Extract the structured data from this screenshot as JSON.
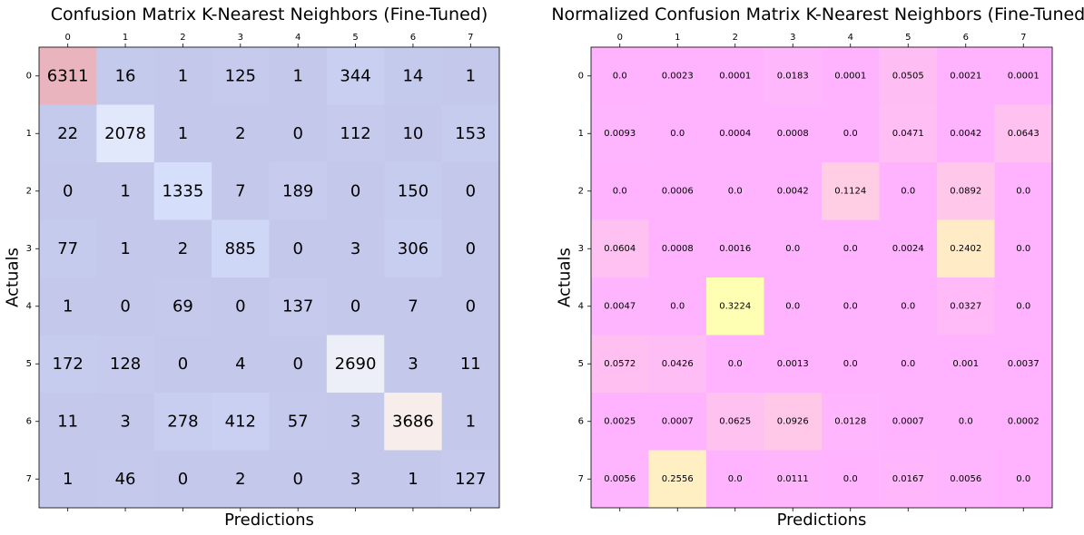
{
  "chart_data": [
    {
      "type": "heatmap",
      "title": "Confusion Matrix K-Nearest Neighbors (Fine-Tuned)",
      "xlabel": "Predictions",
      "ylabel": "Actuals",
      "x_ticks": [
        "0",
        "1",
        "2",
        "3",
        "4",
        "5",
        "6",
        "7"
      ],
      "y_ticks": [
        "0",
        "1",
        "2",
        "3",
        "4",
        "5",
        "6",
        "7"
      ],
      "colormap": "coolwarm",
      "alpha": 0.3,
      "values": [
        [
          6311,
          16,
          1,
          125,
          1,
          344,
          14,
          1
        ],
        [
          22,
          2078,
          1,
          2,
          0,
          112,
          10,
          153
        ],
        [
          0,
          1,
          1335,
          7,
          189,
          0,
          150,
          0
        ],
        [
          77,
          1,
          2,
          885,
          0,
          3,
          306,
          0
        ],
        [
          1,
          0,
          69,
          0,
          137,
          0,
          7,
          0
        ],
        [
          172,
          128,
          0,
          4,
          0,
          2690,
          3,
          11
        ],
        [
          11,
          3,
          278,
          412,
          57,
          3,
          3686,
          1
        ],
        [
          1,
          46,
          0,
          2,
          0,
          3,
          1,
          127
        ]
      ]
    },
    {
      "type": "heatmap",
      "title": "Normalized Confusion Matrix K-Nearest Neighbors (Fine-Tuned)",
      "xlabel": "Predictions",
      "ylabel": "Actuals",
      "x_ticks": [
        "0",
        "1",
        "2",
        "3",
        "4",
        "5",
        "6",
        "7"
      ],
      "y_ticks": [
        "0",
        "1",
        "2",
        "3",
        "4",
        "5",
        "6",
        "7"
      ],
      "colormap": "spring",
      "alpha": 0.3,
      "values": [
        [
          "0.0",
          "0.0023",
          "0.0001",
          "0.0183",
          "0.0001",
          "0.0505",
          "0.0021",
          "0.0001"
        ],
        [
          "0.0093",
          "0.0",
          "0.0004",
          "0.0008",
          "0.0",
          "0.0471",
          "0.0042",
          "0.0643"
        ],
        [
          "0.0",
          "0.0006",
          "0.0",
          "0.0042",
          "0.1124",
          "0.0",
          "0.0892",
          "0.0"
        ],
        [
          "0.0604",
          "0.0008",
          "0.0016",
          "0.0",
          "0.0",
          "0.0024",
          "0.2402",
          "0.0"
        ],
        [
          "0.0047",
          "0.0",
          "0.3224",
          "0.0",
          "0.0",
          "0.0",
          "0.0327",
          "0.0"
        ],
        [
          "0.0572",
          "0.0426",
          "0.0",
          "0.0013",
          "0.0",
          "0.0",
          "0.001",
          "0.0037"
        ],
        [
          "0.0025",
          "0.0007",
          "0.0625",
          "0.0926",
          "0.0128",
          "0.0007",
          "0.0",
          "0.0002"
        ],
        [
          "0.0056",
          "0.2556",
          "0.0",
          "0.0111",
          "0.0",
          "0.0167",
          "0.0056",
          "0.0"
        ]
      ]
    }
  ]
}
